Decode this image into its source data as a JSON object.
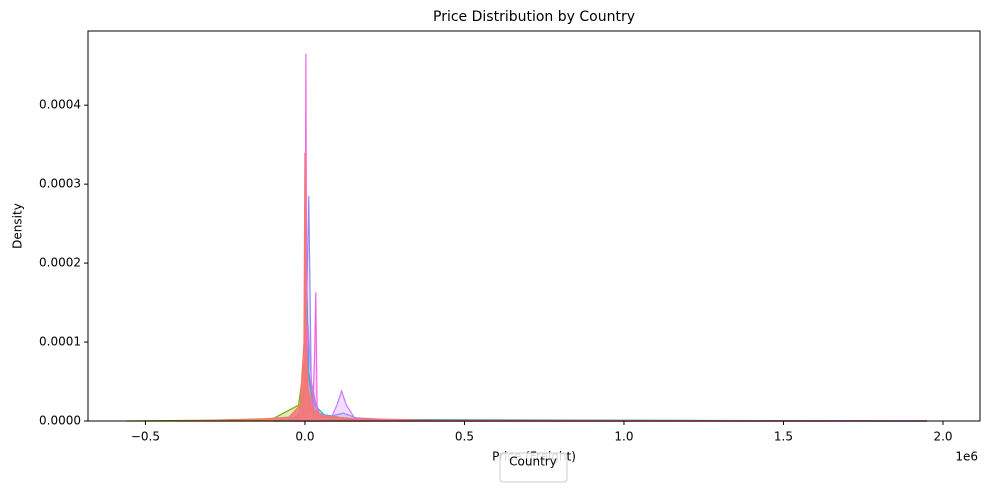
{
  "chart_data": {
    "type": "kde",
    "title": "Price Distribution by Country",
    "xlabel": "Price (Freight)",
    "ylabel": "Density",
    "x_offset_label": "1e6",
    "legend_title": "Country",
    "legend_loc": "lower center",
    "xlim": [
      -680000,
      2116000
    ],
    "ylim": [
      0,
      0.000494
    ],
    "xticks": [
      {
        "value": -500000,
        "label": "−0.5"
      },
      {
        "value": 0,
        "label": "0.0"
      },
      {
        "value": 500000,
        "label": "0.5"
      },
      {
        "value": 1000000,
        "label": "1.0"
      },
      {
        "value": 1500000,
        "label": "1.5"
      },
      {
        "value": 2000000,
        "label": "2.0"
      }
    ],
    "yticks": [
      {
        "value": 0,
        "label": "0.0000"
      },
      {
        "value": 0.0001,
        "label": "0.0001"
      },
      {
        "value": 0.0002,
        "label": "0.0002"
      },
      {
        "value": 0.0003,
        "label": "0.0003"
      },
      {
        "value": 0.0004,
        "label": "0.0004"
      }
    ],
    "series": [
      {
        "color": "#7cae00",
        "x": [
          -560000,
          -300000,
          -100000,
          -20000,
          0,
          4000,
          10000,
          30000,
          100000,
          500000,
          1950000
        ],
        "values": [
          0,
          1e-06,
          3e-06,
          2e-05,
          8e-05,
          0.00019,
          6e-05,
          8e-06,
          2e-06,
          1e-06,
          0
        ]
      },
      {
        "color": "#00bfc4",
        "x": [
          -100000,
          -20000,
          0,
          5000,
          12000,
          30000,
          60000,
          150000,
          1000000,
          1950000
        ],
        "values": [
          0,
          5e-06,
          5e-05,
          0.00019,
          6e-05,
          2e-05,
          8e-06,
          2e-06,
          1e-06,
          0
        ]
      },
      {
        "color": "#8c8cf0",
        "x": [
          -60000,
          -10000,
          0,
          12000,
          20000,
          40000,
          80000,
          120000,
          160000,
          300000,
          1950000
        ],
        "values": [
          0,
          5e-06,
          4e-05,
          0.000285,
          4e-05,
          1e-05,
          6e-06,
          1e-05,
          4e-06,
          1e-06,
          0
        ]
      },
      {
        "color": "#c77cff",
        "x": [
          -40000,
          0,
          10000,
          20000,
          40000,
          80000,
          100000,
          115000,
          130000,
          160000,
          1950000
        ],
        "values": [
          0,
          2e-05,
          0.00012,
          5e-05,
          1e-05,
          2e-06,
          2e-05,
          3.8e-05,
          2e-05,
          1e-06,
          0
        ]
      },
      {
        "color": "#f564e3",
        "x": [
          -20000,
          -5000,
          0,
          3000,
          6000,
          15000,
          25000,
          30000,
          34000,
          38000,
          50000,
          1950000
        ],
        "values": [
          0,
          1e-05,
          0.0001,
          0.000465,
          5e-05,
          1e-05,
          2e-05,
          8e-05,
          0.000163,
          2e-05,
          0,
          0
        ]
      },
      {
        "color": "#f8766d",
        "x": [
          -400000,
          -150000,
          -50000,
          -15000,
          -3000,
          0,
          3000,
          10000,
          25000,
          60000,
          150000,
          400000,
          1950000
        ],
        "values": [
          0,
          2e-06,
          5e-06,
          2e-05,
          0.0001,
          0.00034,
          0.0001,
          4e-05,
          1.5e-05,
          6e-06,
          3e-06,
          1e-06,
          0
        ]
      }
    ]
  }
}
